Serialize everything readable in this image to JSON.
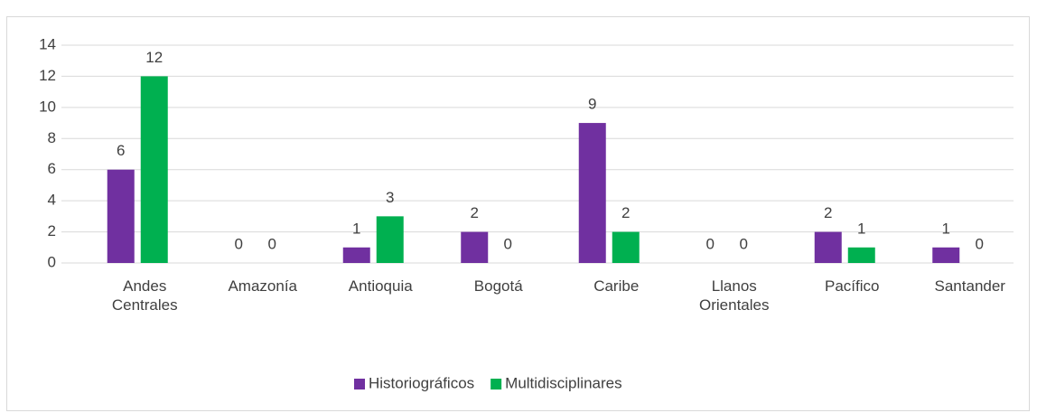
{
  "chart_data": {
    "type": "bar",
    "categories": [
      "Andes Centrales",
      "Amazonía",
      "Antioquia",
      "Bogotá",
      "Caribe",
      "Llanos Orientales",
      "Pacífico",
      "Santander"
    ],
    "series": [
      {
        "name": "Historiográficos",
        "color": "#7030a0",
        "values": [
          6,
          0,
          1,
          2,
          9,
          0,
          2,
          1
        ]
      },
      {
        "name": "Multidisciplinares",
        "color": "#00b050",
        "values": [
          12,
          0,
          3,
          0,
          2,
          0,
          1,
          0
        ]
      }
    ],
    "ylim": [
      0,
      14
    ],
    "yticks": [
      0,
      2,
      4,
      6,
      8,
      10,
      12,
      14
    ],
    "grid": true,
    "legend": "bottom"
  }
}
